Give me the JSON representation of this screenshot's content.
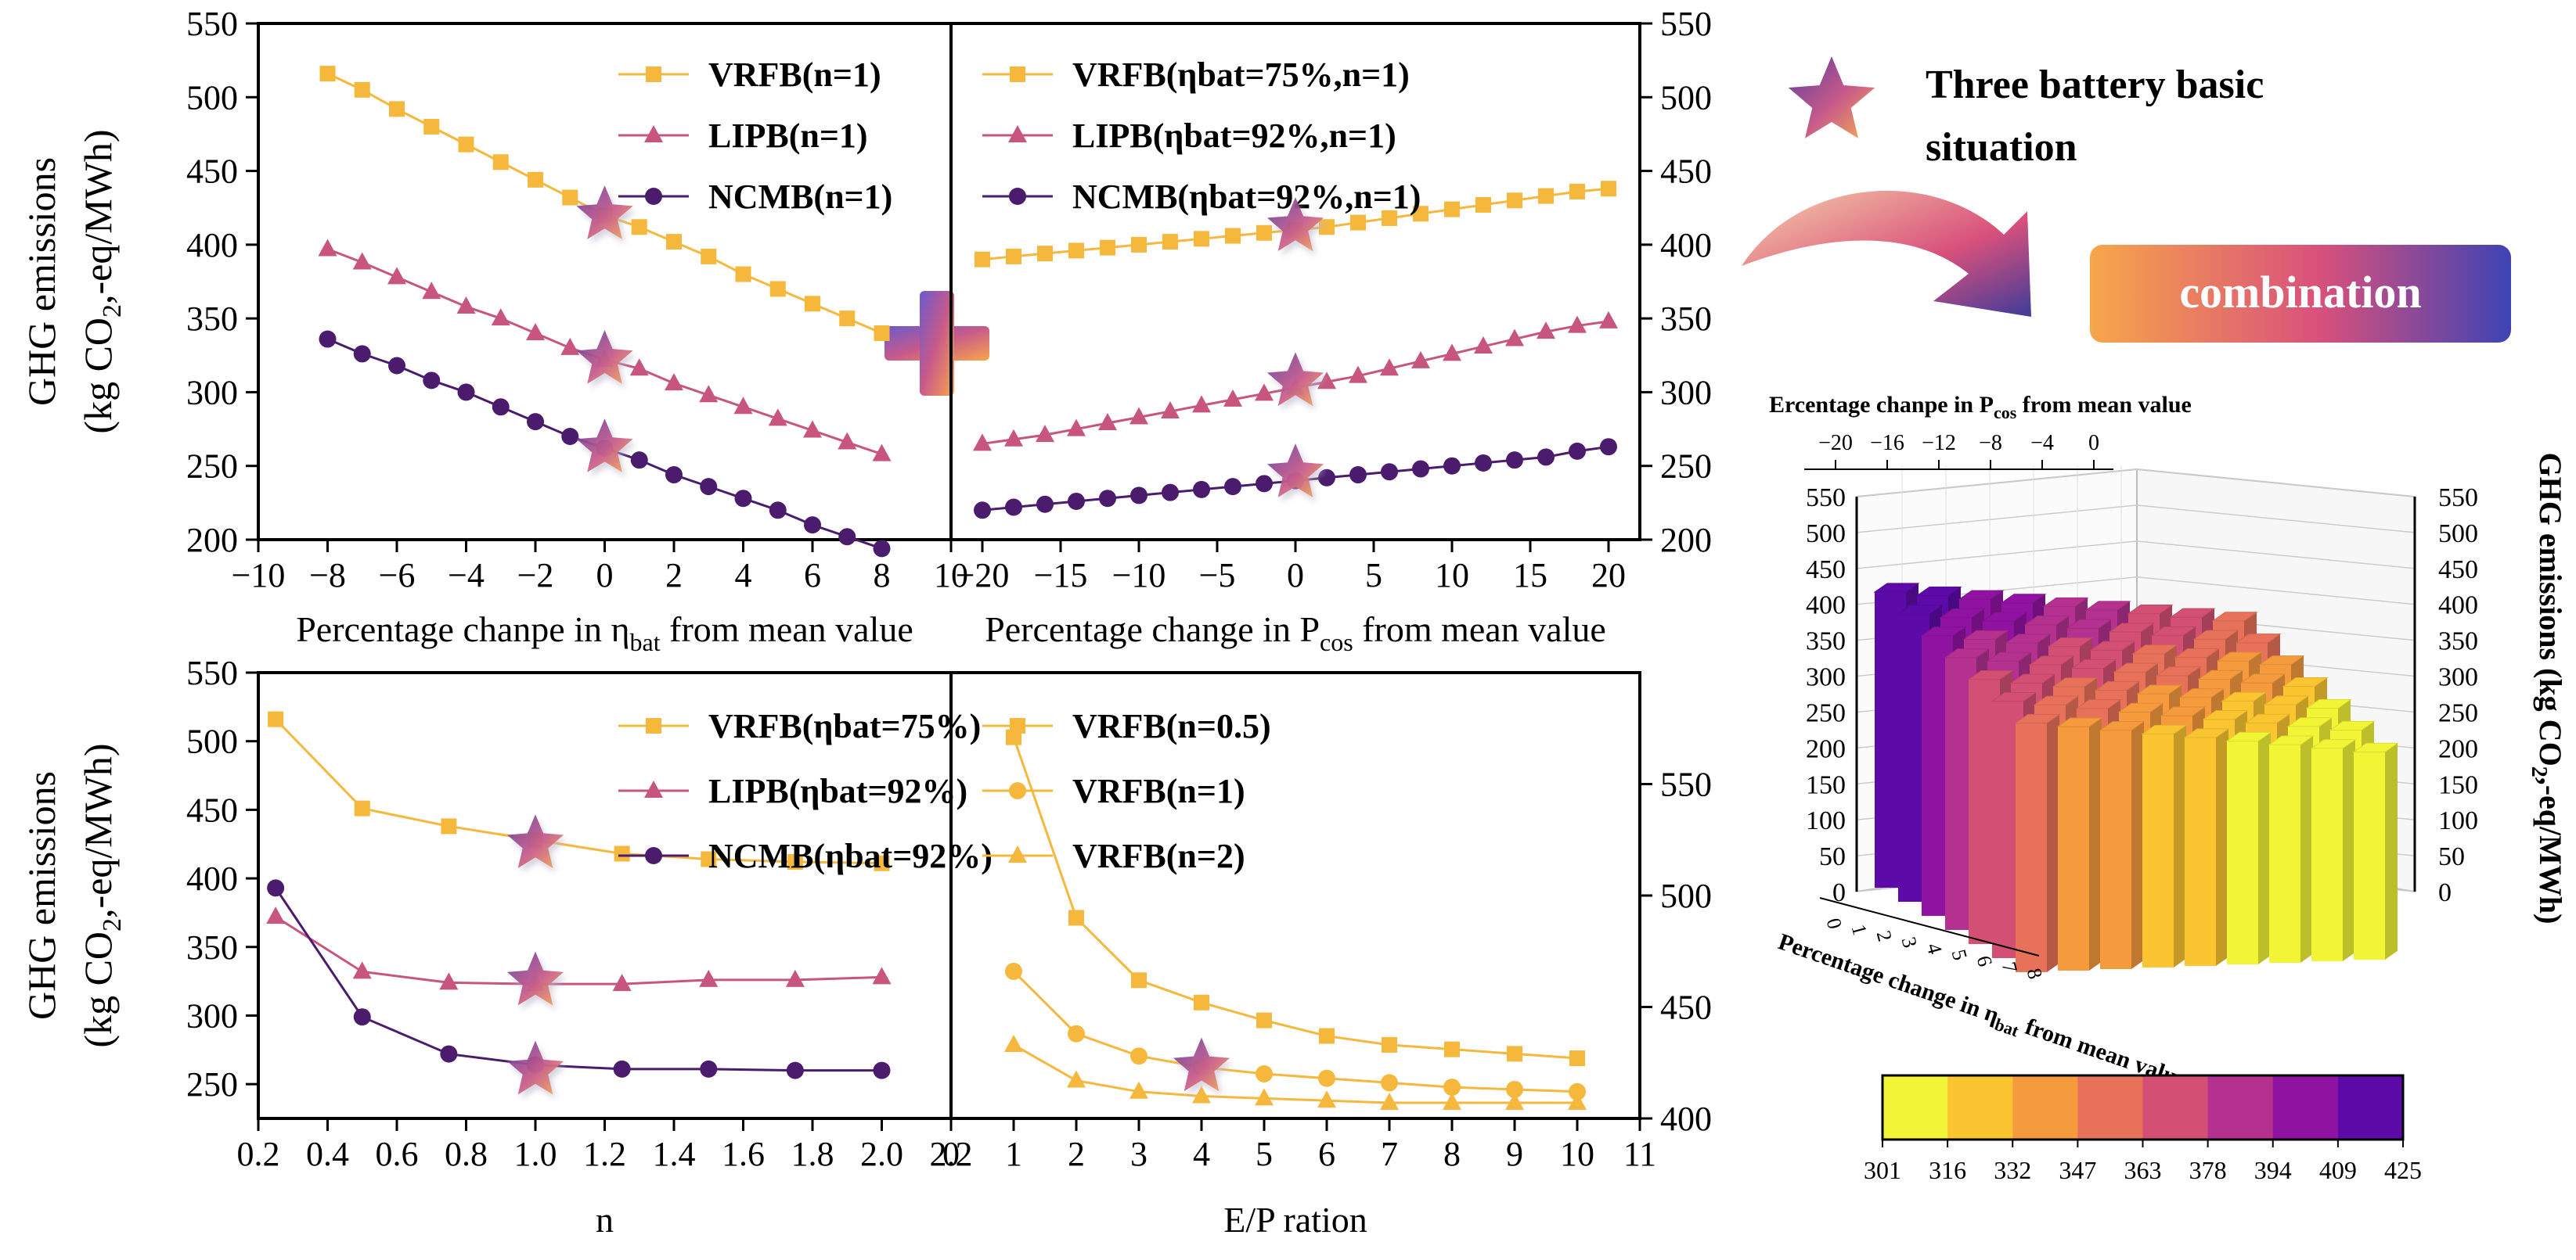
{
  "colors": {
    "vrfb": "#F5B83C",
    "lipb": "#C8557D",
    "ncmb": "#4B1C6E",
    "star_from": "#6B3FA0",
    "star_to": "#F7A84A",
    "axis": "#000000"
  },
  "colorbar": {
    "ticks": [
      "301",
      "316",
      "332",
      "347",
      "363",
      "378",
      "394",
      "409",
      "425"
    ],
    "colors": [
      "#F1F535",
      "#FBC532",
      "#F69A3E",
      "#E8715A",
      "#D34F73",
      "#B5318F",
      "#8F13A0",
      "#5C0BA8"
    ]
  },
  "annotations": {
    "star_label_line1": "Three battery basic",
    "star_label_line2": "situation",
    "combination": "combination",
    "plus": "+"
  },
  "chart_data": [
    {
      "type": "line",
      "id": "top_left",
      "xlabel": "Percentage chanpe in η_bat from mean value",
      "ylabel": "GHG emissions (kg CO2,-eq/MWh)",
      "xlim": [
        -10,
        10
      ],
      "ylim": [
        200,
        550
      ],
      "xticks": [
        -10,
        -8,
        -6,
        -4,
        -2,
        0,
        2,
        4,
        6,
        8,
        10
      ],
      "yticks": [
        200,
        250,
        300,
        350,
        400,
        450,
        500,
        550
      ],
      "x": [
        -8,
        -7,
        -6,
        -5,
        -4,
        -3,
        -2,
        -1,
        0,
        1,
        2,
        3,
        4,
        5,
        6,
        7,
        8
      ],
      "series": [
        {
          "name": "VRFB(n=1)",
          "marker": "square",
          "values": [
            516,
            505,
            492,
            480,
            468,
            456,
            444,
            432,
            420,
            412,
            402,
            392,
            380,
            370,
            360,
            350,
            340
          ]
        },
        {
          "name": "LIPB(n=1)",
          "marker": "triangle",
          "values": [
            397,
            388,
            378,
            368,
            358,
            350,
            340,
            330,
            322,
            316,
            306,
            298,
            290,
            282,
            274,
            266,
            258
          ]
        },
        {
          "name": "NCMB(n=1)",
          "marker": "circle",
          "values": [
            336,
            326,
            318,
            308,
            300,
            290,
            280,
            270,
            262,
            254,
            244,
            236,
            228,
            220,
            210,
            202,
            194
          ]
        }
      ],
      "stars": [
        [
          0,
          420
        ],
        [
          0,
          322
        ],
        [
          0,
          262
        ]
      ]
    },
    {
      "type": "line",
      "id": "top_right",
      "xlabel": "Percentage change in P_cos from mean value",
      "ylabel": "",
      "xlim": [
        -22,
        22
      ],
      "ylim": [
        200,
        550
      ],
      "xticks": [
        -20,
        -15,
        -10,
        -5,
        0,
        5,
        10,
        15,
        20
      ],
      "yticks": [
        200,
        250,
        300,
        350,
        400,
        450,
        500,
        550
      ],
      "x": [
        -20,
        -18,
        -16,
        -14,
        -12,
        -10,
        -8,
        -6,
        -4,
        -2,
        0,
        2,
        4,
        6,
        8,
        10,
        12,
        14,
        16,
        18,
        20
      ],
      "series": [
        {
          "name": "VRFB(ηbat=75%,n=1)",
          "marker": "square",
          "values": [
            390,
            392,
            394,
            396,
            398,
            400,
            402,
            404,
            406,
            408,
            410,
            412,
            415,
            418,
            421,
            424,
            427,
            430,
            433,
            436,
            438
          ]
        },
        {
          "name": "LIPB(ηbat=92%,n=1)",
          "marker": "triangle",
          "values": [
            265,
            268,
            271,
            275,
            279,
            283,
            287,
            291,
            295,
            299,
            303,
            307,
            311,
            316,
            321,
            326,
            331,
            336,
            341,
            345,
            348
          ]
        },
        {
          "name": "NCMB(ηbat=92%,n=1)",
          "marker": "circle",
          "values": [
            220,
            222,
            224,
            226,
            228,
            230,
            232,
            234,
            236,
            238,
            240,
            242,
            244,
            246,
            248,
            250,
            252,
            254,
            256,
            260,
            263
          ]
        }
      ],
      "stars": [
        [
          0,
          412
        ],
        [
          0,
          307
        ],
        [
          0,
          245
        ]
      ]
    },
    {
      "type": "line",
      "id": "bottom_left",
      "xlabel": "n",
      "ylabel": "GHG emissions (kg CO2,-eq/MWh)",
      "xlim": [
        0.2,
        2.2
      ],
      "ylim": [
        225,
        550
      ],
      "xticks": [
        0.2,
        0.4,
        0.6,
        0.8,
        1.0,
        1.2,
        1.4,
        1.6,
        1.8,
        2.0,
        2.2
      ],
      "xtick_labels": [
        "0.2",
        "0.4",
        "0.6",
        "0.8",
        "1.0",
        "1.2",
        "1.4",
        "1.6",
        "1.8",
        "2.0",
        "2.2"
      ],
      "yticks": [
        250,
        300,
        350,
        400,
        450,
        500,
        550
      ],
      "x": [
        0.25,
        0.5,
        0.75,
        1.0,
        1.25,
        1.5,
        1.75,
        2.0
      ],
      "series": [
        {
          "name": "VRFB(ηbat=75%)",
          "marker": "square",
          "values": [
            516,
            451,
            438,
            428,
            418,
            414,
            412,
            411
          ]
        },
        {
          "name": "LIPB(ηbat=92%)",
          "marker": "triangle",
          "values": [
            372,
            332,
            324,
            323,
            323,
            326,
            326,
            328
          ]
        },
        {
          "name": "NCMB(ηbat=92%)",
          "marker": "circle",
          "values": [
            393,
            299,
            272,
            264,
            261,
            261,
            260,
            260
          ]
        }
      ],
      "stars": [
        [
          1.0,
          425
        ],
        [
          1.0,
          325
        ],
        [
          1.0,
          260
        ]
      ]
    },
    {
      "type": "line",
      "id": "bottom_right",
      "xlabel": "E/P ration",
      "ylabel": "",
      "xlim": [
        0,
        11
      ],
      "ylim": [
        400,
        600
      ],
      "xticks": [
        0,
        1,
        2,
        3,
        4,
        5,
        6,
        7,
        8,
        9,
        10,
        11
      ],
      "yticks": [
        400,
        450,
        500,
        550
      ],
      "x": [
        1,
        2,
        3,
        4,
        5,
        6,
        7,
        8,
        9,
        10
      ],
      "series": [
        {
          "name": "VRFB(n=0.5)",
          "marker": "square",
          "values": [
            571,
            490,
            462,
            452,
            444,
            437,
            433,
            431,
            429,
            427
          ]
        },
        {
          "name": "VRFB(n=1)",
          "marker": "circle",
          "values": [
            466,
            438,
            428,
            423,
            420,
            418,
            416,
            414,
            413,
            412
          ]
        },
        {
          "name": "VRFB(n=2)",
          "marker": "triangle",
          "values": [
            433,
            417,
            412,
            410,
            409,
            408,
            407,
            407,
            407,
            407
          ]
        }
      ],
      "stars": [
        [
          4,
          423
        ]
      ]
    },
    {
      "type": "bar3d",
      "id": "right_3d",
      "zlabel": "GHG emissions (kg CO2,-eq/MWh)",
      "top_axis_label": "Ercentage chanpe in P_cos from mean value",
      "top_axis_ticks": [
        "-20",
        "-16",
        "-12",
        "-8",
        "-4",
        "0"
      ],
      "bottom_axis_label": "Percentage change in η_bat from mean value",
      "bottom_axis_ticks": [
        "0",
        "1",
        "2",
        "3",
        "4",
        "5",
        "6",
        "7",
        "8"
      ],
      "zticks": [
        "0",
        "50",
        "100",
        "150",
        "200",
        "250",
        "300",
        "350",
        "400",
        "450",
        "500",
        "550"
      ],
      "zlim": [
        0,
        550
      ],
      "value_range": [
        301,
        425
      ]
    }
  ]
}
